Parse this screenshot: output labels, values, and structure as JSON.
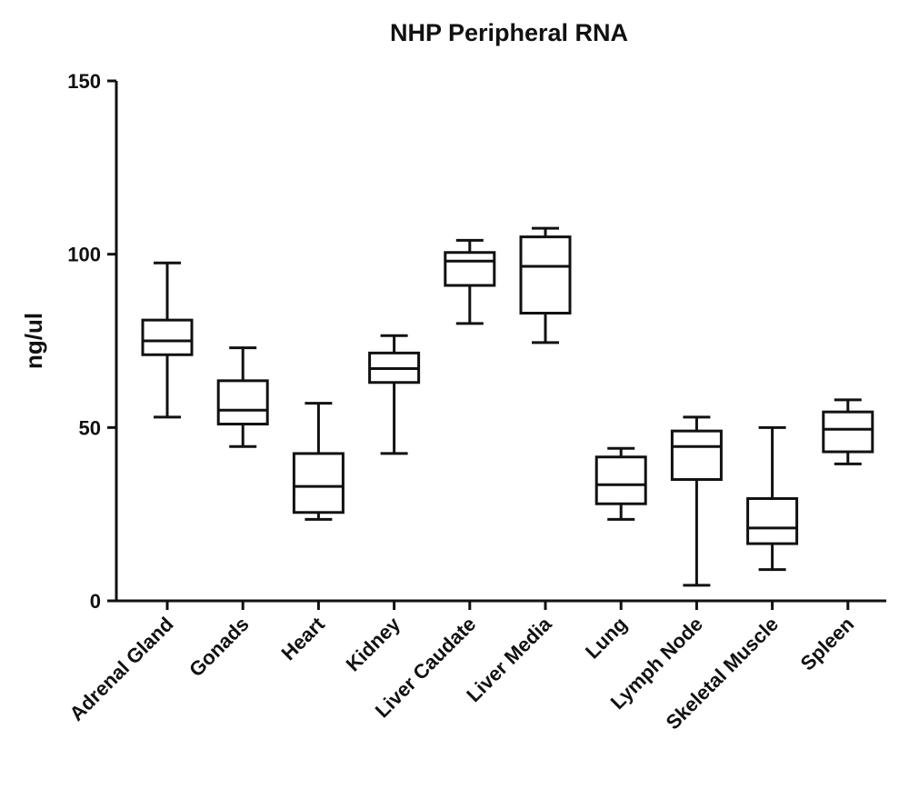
{
  "chart_data": {
    "type": "box",
    "title": "NHP Peripheral RNA",
    "xlabel": "",
    "ylabel": "ng/ul",
    "ylim": [
      0,
      150
    ],
    "yticks": [
      0,
      50,
      100,
      150
    ],
    "categories": [
      "Adrenal Gland",
      "Gonads",
      "Heart",
      "Kidney",
      "Liver Caudate",
      "Liver Media",
      "Lung",
      "Lymph Node",
      "Skeletal Muscle",
      "Spleen"
    ],
    "boxes": [
      {
        "min": 53,
        "q1": 71,
        "median": 75,
        "q3": 81,
        "max": 97.5
      },
      {
        "min": 44.5,
        "q1": 51,
        "median": 55,
        "q3": 63.5,
        "max": 73
      },
      {
        "min": 23.5,
        "q1": 25.5,
        "median": 33,
        "q3": 42.5,
        "max": 57
      },
      {
        "min": 42.5,
        "q1": 63,
        "median": 67,
        "q3": 71.5,
        "max": 76.5
      },
      {
        "min": 80,
        "q1": 91,
        "median": 98,
        "q3": 100.5,
        "max": 104
      },
      {
        "min": 74.5,
        "q1": 83,
        "median": 96.5,
        "q3": 105,
        "max": 107.5
      },
      {
        "min": 23.5,
        "q1": 28,
        "median": 33.5,
        "q3": 41.5,
        "max": 44
      },
      {
        "min": 4.5,
        "q1": 35,
        "median": 44.5,
        "q3": 49,
        "max": 53
      },
      {
        "min": 9,
        "q1": 16.5,
        "median": 21,
        "q3": 29.5,
        "max": 50
      },
      {
        "min": 39.5,
        "q1": 43,
        "median": 49.5,
        "q3": 54.5,
        "max": 58
      }
    ],
    "grid": false,
    "legend": "none"
  }
}
